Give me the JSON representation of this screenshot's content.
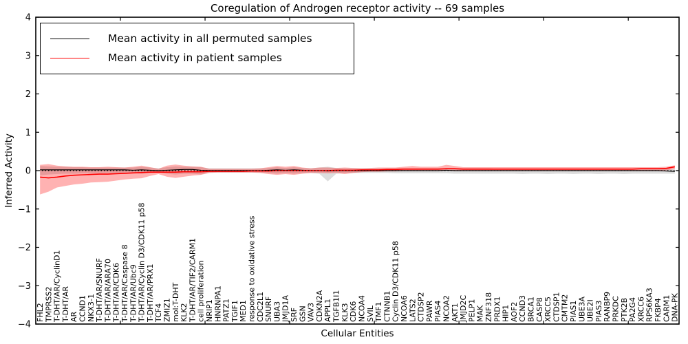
{
  "title": "Coregulation of Androgen receptor activity -- 69 samples",
  "legend": {
    "entries": [
      {
        "label": "Mean activity in all permuted samples",
        "color": "#000000"
      },
      {
        "label": "Mean activity in patient samples",
        "color": "#ff0000"
      }
    ]
  },
  "chart_data": {
    "type": "line",
    "title": "Coregulation of Androgen receptor activity -- 69 samples",
    "xlabel": "Cellular Entities",
    "ylabel": "Inferred Activity",
    "ylim": [
      -4,
      4
    ],
    "yticks": [
      4,
      3,
      2,
      1,
      0,
      -1,
      -2,
      -3,
      -4
    ],
    "xticks": [
      10,
      20,
      30,
      40,
      50,
      60,
      70
    ],
    "zero_line": true,
    "grid": false,
    "legend_position": "upper left",
    "categories": [
      "FHL2",
      "TMPRSS2",
      "T-DHT/AR/CyclinD1",
      "T-DHT/AR",
      "AR",
      "CCND1",
      "NKX3-1",
      "T-DHT/AR/SNURF",
      "T-DHT/AR/ARA70",
      "T-DHT/AR/CDK6",
      "T-DHT/AR/Caspase 8",
      "T-DHT/AR/Ubc9",
      "T-DHT/AR/Cyclin D3/CDK11 p58",
      "T-DHT/AR/PRX1",
      "TCF4",
      "ZMIZ1",
      "mol:T-DHT",
      "KLK2",
      "T-DHT/AR/TIF2/CARM1",
      "cell proliferation",
      "NRIP1",
      "HNRNPA1",
      "PATZ1",
      "TGIF1",
      "MED1",
      "response to oxidative stress",
      "CDC2L1",
      "SNURF",
      "UBA3",
      "JMJD1A",
      "SRF",
      "GSN",
      "VAV3",
      "CDKN2A",
      "APPL1",
      "TGFB1I1",
      "KLK3",
      "CDK6",
      "NCOA4",
      "SVIL",
      "TMF1",
      "CTNNB1",
      "Cyclin D3/CDK11 p58",
      "NCOA6",
      "LATS2",
      "CTDSP2",
      "PAWR",
      "PIAS4",
      "NCOA2",
      "AKT1",
      "JMJD2C",
      "PELP1",
      "MAK",
      "ZNF318",
      "PRDX1",
      "HIP1",
      "AOF2",
      "CCND3",
      "BRCA1",
      "CASP8",
      "XRCC5",
      "CTDSP1",
      "CMTM2",
      "PIAS1",
      "UBE3A",
      "UBE2I",
      "PIAS3",
      "RANBP9",
      "PRKDC",
      "PTK2B",
      "PA2G4",
      "XRCC6",
      "RPS6KA3",
      "FKBP4",
      "CARM1",
      "DNA-PK"
    ],
    "series": [
      {
        "name": "Mean activity in all permuted samples",
        "color": "#000000",
        "band_color": "#777777",
        "band_opacity": 0.25,
        "values": [
          0.02,
          0.02,
          0.02,
          0.02,
          0.02,
          0.02,
          0.02,
          0.02,
          0.02,
          0.02,
          0.02,
          0.01,
          0.02,
          0.01,
          0.0,
          0.01,
          0.02,
          0.03,
          0.03,
          0.01,
          0.0,
          0.0,
          0.0,
          0.0,
          0.0,
          0.0,
          0.0,
          0.01,
          0.02,
          0.01,
          0.02,
          0.01,
          0.0,
          0.0,
          -0.01,
          0.0,
          0.0,
          0.0,
          0.0,
          0.0,
          0.0,
          0.0,
          0.0,
          0.0,
          0.0,
          0.0,
          0.0,
          0.0,
          0.01,
          0.0,
          0.0,
          0.0,
          0.0,
          0.0,
          0.0,
          0.0,
          0.0,
          0.0,
          0.0,
          0.0,
          0.0,
          0.0,
          0.0,
          0.0,
          0.0,
          0.0,
          0.0,
          0.0,
          0.0,
          0.0,
          0.0,
          0.0,
          0.0,
          0.0,
          -0.01,
          -0.02
        ],
        "band_low": [
          -0.12,
          -0.1,
          -0.09,
          -0.08,
          -0.08,
          -0.07,
          -0.07,
          -0.07,
          -0.06,
          -0.06,
          -0.06,
          -0.06,
          -0.08,
          -0.06,
          -0.05,
          -0.08,
          -0.1,
          -0.08,
          -0.08,
          -0.1,
          -0.05,
          -0.05,
          -0.05,
          -0.05,
          -0.05,
          -0.05,
          -0.05,
          -0.06,
          -0.08,
          -0.06,
          -0.08,
          -0.06,
          -0.06,
          -0.08,
          -0.28,
          -0.08,
          -0.06,
          -0.06,
          -0.06,
          -0.06,
          -0.06,
          -0.06,
          -0.07,
          -0.07,
          -0.07,
          -0.07,
          -0.07,
          -0.07,
          -0.07,
          -0.08,
          -0.08,
          -0.08,
          -0.08,
          -0.08,
          -0.08,
          -0.08,
          -0.08,
          -0.09,
          -0.08,
          -0.08,
          -0.09,
          -0.08,
          -0.08,
          -0.09,
          -0.08,
          -0.08,
          -0.09,
          -0.08,
          -0.08,
          -0.09,
          -0.08,
          -0.08,
          -0.08,
          -0.08,
          -0.08,
          -0.08
        ],
        "band_high": [
          0.12,
          0.11,
          0.1,
          0.1,
          0.09,
          0.09,
          0.08,
          0.08,
          0.08,
          0.08,
          0.08,
          0.08,
          0.1,
          0.08,
          0.06,
          0.09,
          0.11,
          0.1,
          0.1,
          0.09,
          0.06,
          0.06,
          0.06,
          0.06,
          0.06,
          0.06,
          0.06,
          0.07,
          0.09,
          0.07,
          0.09,
          0.07,
          0.06,
          0.08,
          0.1,
          0.07,
          0.06,
          0.06,
          0.06,
          0.06,
          0.06,
          0.06,
          0.06,
          0.06,
          0.06,
          0.06,
          0.06,
          0.06,
          0.06,
          0.06,
          0.06,
          0.06,
          0.06,
          0.06,
          0.05,
          0.05,
          0.05,
          0.05,
          0.05,
          0.05,
          0.05,
          0.05,
          0.05,
          0.05,
          0.05,
          0.05,
          0.05,
          0.05,
          0.05,
          0.05,
          0.05,
          0.05,
          0.05,
          0.05,
          0.05,
          0.05
        ]
      },
      {
        "name": "Mean activity in patient samples",
        "color": "#ff0000",
        "band_color": "#ff0000",
        "band_opacity": 0.3,
        "values": [
          -0.17,
          -0.19,
          -0.17,
          -0.14,
          -0.12,
          -0.11,
          -0.1,
          -0.09,
          -0.09,
          -0.08,
          -0.07,
          -0.06,
          -0.05,
          -0.04,
          -0.04,
          -0.04,
          -0.04,
          -0.03,
          -0.03,
          -0.03,
          -0.02,
          -0.02,
          -0.02,
          -0.02,
          -0.02,
          -0.01,
          -0.01,
          -0.01,
          0.0,
          0.0,
          0.0,
          0.0,
          0.0,
          0.0,
          0.0,
          0.01,
          0.01,
          0.01,
          0.02,
          0.02,
          0.02,
          0.03,
          0.03,
          0.04,
          0.04,
          0.04,
          0.04,
          0.04,
          0.05,
          0.05,
          0.04,
          0.04,
          0.04,
          0.04,
          0.04,
          0.04,
          0.04,
          0.04,
          0.04,
          0.04,
          0.04,
          0.04,
          0.04,
          0.04,
          0.04,
          0.04,
          0.04,
          0.04,
          0.04,
          0.04,
          0.04,
          0.05,
          0.05,
          0.05,
          0.06,
          0.1
        ],
        "band_low": [
          -0.62,
          -0.55,
          -0.44,
          -0.4,
          -0.36,
          -0.34,
          -0.31,
          -0.3,
          -0.29,
          -0.26,
          -0.23,
          -0.21,
          -0.2,
          -0.14,
          -0.09,
          -0.16,
          -0.19,
          -0.16,
          -0.13,
          -0.11,
          -0.06,
          -0.05,
          -0.05,
          -0.05,
          -0.05,
          -0.05,
          -0.06,
          -0.09,
          -0.11,
          -0.09,
          -0.11,
          -0.08,
          -0.06,
          -0.06,
          -0.07,
          -0.06,
          -0.09,
          -0.06,
          -0.04,
          -0.03,
          -0.03,
          -0.02,
          -0.02,
          -0.01,
          -0.01,
          -0.01,
          -0.01,
          -0.01,
          0.0,
          0.0,
          -0.01,
          -0.01,
          -0.01,
          -0.01,
          -0.01,
          -0.01,
          -0.01,
          -0.01,
          -0.01,
          -0.01,
          -0.01,
          -0.01,
          -0.01,
          -0.01,
          -0.01,
          -0.01,
          -0.01,
          -0.01,
          -0.01,
          -0.01,
          -0.01,
          0.0,
          0.0,
          0.0,
          0.01,
          0.04
        ],
        "band_high": [
          0.15,
          0.17,
          0.13,
          0.11,
          0.1,
          0.1,
          0.09,
          0.09,
          0.1,
          0.09,
          0.08,
          0.1,
          0.13,
          0.09,
          0.05,
          0.13,
          0.16,
          0.13,
          0.11,
          0.1,
          0.05,
          0.05,
          0.05,
          0.05,
          0.05,
          0.05,
          0.06,
          0.09,
          0.12,
          0.1,
          0.12,
          0.08,
          0.06,
          0.08,
          0.08,
          0.07,
          0.08,
          0.07,
          0.06,
          0.07,
          0.08,
          0.08,
          0.08,
          0.1,
          0.12,
          0.1,
          0.1,
          0.1,
          0.15,
          0.12,
          0.09,
          0.09,
          0.09,
          0.09,
          0.09,
          0.09,
          0.09,
          0.09,
          0.09,
          0.09,
          0.09,
          0.09,
          0.09,
          0.09,
          0.09,
          0.09,
          0.09,
          0.09,
          0.09,
          0.09,
          0.09,
          0.09,
          0.09,
          0.09,
          0.1,
          0.14
        ]
      }
    ]
  }
}
